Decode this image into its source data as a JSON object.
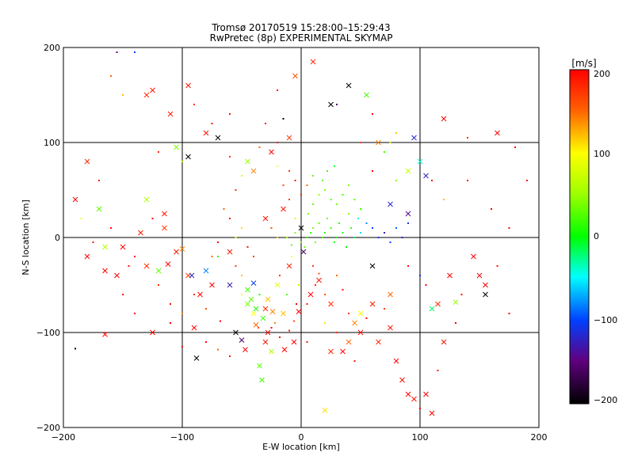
{
  "chart_data": {
    "type": "scatter",
    "title": "Tromsø 20170519 15:28:00–15:29:43",
    "subtitle": "RwPretec (8p) EXPERIMENTAL SKYMAP",
    "xlabel": "E-W location [km]",
    "ylabel": "N-S location [km]",
    "xlim": [
      -200,
      200
    ],
    "ylim": [
      -200,
      200
    ],
    "xticks": [
      "−200",
      "−100",
      "0",
      "100",
      "200"
    ],
    "yticks": [
      "−200",
      "−100",
      "0",
      "100",
      "200"
    ],
    "grid": true,
    "colorbar": {
      "label": "[m/s]",
      "range": [
        -200,
        200
      ],
      "ticks": [
        "200",
        "100",
        "0",
        "−100",
        "−200"
      ]
    },
    "markers": {
      "dot": "small points",
      "cross": "×"
    },
    "points": [
      [
        -120,
        90,
        180,
        "dot"
      ],
      [
        -110,
        130,
        190,
        "cross"
      ],
      [
        -95,
        160,
        190,
        "cross"
      ],
      [
        -90,
        140,
        170,
        "dot"
      ],
      [
        -80,
        110,
        190,
        "cross"
      ],
      [
        -75,
        120,
        190,
        "dot"
      ],
      [
        -60,
        85,
        170,
        "dot"
      ],
      [
        -55,
        50,
        180,
        "dot"
      ],
      [
        -40,
        70,
        140,
        "cross"
      ],
      [
        -30,
        120,
        190,
        "dot"
      ],
      [
        -20,
        155,
        190,
        "dot"
      ],
      [
        -5,
        170,
        160,
        "cross"
      ],
      [
        10,
        185,
        180,
        "cross"
      ],
      [
        25,
        140,
        -200,
        "cross"
      ],
      [
        40,
        160,
        -200,
        "cross"
      ],
      [
        55,
        150,
        20,
        "cross"
      ],
      [
        60,
        130,
        200,
        "dot"
      ],
      [
        80,
        110,
        120,
        "dot"
      ],
      [
        95,
        105,
        -120,
        "cross"
      ],
      [
        120,
        125,
        200,
        "cross"
      ],
      [
        140,
        105,
        180,
        "dot"
      ],
      [
        165,
        110,
        200,
        "cross"
      ],
      [
        180,
        95,
        200,
        "dot"
      ],
      [
        -190,
        40,
        200,
        "cross"
      ],
      [
        -170,
        30,
        30,
        "cross"
      ],
      [
        -160,
        10,
        200,
        "dot"
      ],
      [
        -150,
        -10,
        200,
        "cross"
      ],
      [
        -140,
        -20,
        200,
        "dot"
      ],
      [
        -130,
        -30,
        180,
        "cross"
      ],
      [
        -120,
        -50,
        180,
        "dot"
      ],
      [
        -110,
        -70,
        190,
        "dot"
      ],
      [
        -100,
        -80,
        140,
        "dot"
      ],
      [
        -90,
        -95,
        200,
        "cross"
      ],
      [
        -130,
        40,
        60,
        "cross"
      ],
      [
        -115,
        10,
        170,
        "cross"
      ],
      [
        -105,
        -15,
        190,
        "cross"
      ],
      [
        -95,
        -40,
        170,
        "cross"
      ],
      [
        -85,
        -60,
        200,
        "cross"
      ],
      [
        -75,
        -20,
        150,
        "dot"
      ],
      [
        -180,
        -20,
        200,
        "cross"
      ],
      [
        -165,
        -35,
        200,
        "cross"
      ],
      [
        -150,
        -60,
        200,
        "dot"
      ],
      [
        -140,
        -80,
        200,
        "dot"
      ],
      [
        -125,
        -100,
        200,
        "cross"
      ],
      [
        -165,
        -102,
        200,
        "cross"
      ],
      [
        -190,
        -117,
        -200,
        "dot"
      ],
      [
        -88,
        -127,
        -200,
        "cross"
      ],
      [
        -70,
        -20,
        10,
        "dot"
      ],
      [
        -60,
        -50,
        -130,
        "cross"
      ],
      [
        -50,
        -40,
        120,
        "dot"
      ],
      [
        -45,
        -70,
        40,
        "cross"
      ],
      [
        -40,
        -80,
        100,
        "cross"
      ],
      [
        -38,
        -92,
        150,
        "cross"
      ],
      [
        -35,
        -60,
        10,
        "dot"
      ],
      [
        -30,
        -75,
        180,
        "cross"
      ],
      [
        -28,
        -100,
        200,
        "cross"
      ],
      [
        -25,
        -120,
        60,
        "cross"
      ],
      [
        -22,
        -90,
        140,
        "dot"
      ],
      [
        -20,
        -50,
        90,
        "cross"
      ],
      [
        -18,
        -40,
        170,
        "dot"
      ],
      [
        -15,
        -80,
        120,
        "cross"
      ],
      [
        -12,
        -60,
        30,
        "dot"
      ],
      [
        -10,
        -30,
        180,
        "cross"
      ],
      [
        -8,
        -20,
        100,
        "dot"
      ],
      [
        -6,
        -110,
        200,
        "cross"
      ],
      [
        -4,
        -70,
        200,
        "dot"
      ],
      [
        -2,
        -50,
        60,
        "dot"
      ],
      [
        -55,
        -100,
        -200,
        "cross"
      ],
      [
        -50,
        -108,
        -160,
        "cross"
      ],
      [
        -47,
        -118,
        200,
        "cross"
      ],
      [
        -35,
        -135,
        30,
        "cross"
      ],
      [
        -33,
        -150,
        20,
        "cross"
      ],
      [
        -40,
        -20,
        170,
        "dot"
      ],
      [
        -45,
        -10,
        190,
        "dot"
      ],
      [
        -50,
        10,
        110,
        "dot"
      ],
      [
        -60,
        20,
        190,
        "dot"
      ],
      [
        -65,
        30,
        150,
        "dot"
      ],
      [
        -55,
        0,
        90,
        "dot"
      ],
      [
        -30,
        20,
        190,
        "cross"
      ],
      [
        -25,
        10,
        160,
        "dot"
      ],
      [
        -20,
        0,
        120,
        "dot"
      ],
      [
        -15,
        30,
        190,
        "cross"
      ],
      [
        -10,
        40,
        170,
        "dot"
      ],
      [
        -5,
        20,
        80,
        "dot"
      ],
      [
        0,
        10,
        -200,
        "cross"
      ],
      [
        2,
        -15,
        -160,
        "cross"
      ],
      [
        5,
        0,
        20,
        "dot"
      ],
      [
        8,
        5,
        20,
        "dot"
      ],
      [
        10,
        10,
        40,
        "dot"
      ],
      [
        12,
        -5,
        40,
        "dot"
      ],
      [
        15,
        15,
        30,
        "dot"
      ],
      [
        18,
        0,
        30,
        "dot"
      ],
      [
        20,
        5,
        10,
        "dot"
      ],
      [
        22,
        20,
        40,
        "dot"
      ],
      [
        25,
        10,
        20,
        "dot"
      ],
      [
        28,
        -5,
        10,
        "dot"
      ],
      [
        30,
        0,
        0,
        "dot"
      ],
      [
        32,
        15,
        10,
        "dot"
      ],
      [
        35,
        5,
        10,
        "dot"
      ],
      [
        38,
        -10,
        0,
        "dot"
      ],
      [
        40,
        25,
        40,
        "dot"
      ],
      [
        42,
        10,
        20,
        "dot"
      ],
      [
        45,
        0,
        -20,
        "dot"
      ],
      [
        48,
        20,
        -40,
        "dot"
      ],
      [
        50,
        5,
        -60,
        "dot"
      ],
      [
        55,
        15,
        -80,
        "dot"
      ],
      [
        60,
        10,
        -100,
        "dot"
      ],
      [
        65,
        0,
        -110,
        "dot"
      ],
      [
        70,
        5,
        -120,
        "dot"
      ],
      [
        75,
        -5,
        -100,
        "dot"
      ],
      [
        80,
        10,
        -90,
        "dot"
      ],
      [
        85,
        0,
        -120,
        "dot"
      ],
      [
        90,
        15,
        -110,
        "dot"
      ],
      [
        -5,
        5,
        40,
        "dot"
      ],
      [
        -8,
        -8,
        30,
        "dot"
      ],
      [
        -12,
        0,
        50,
        "dot"
      ],
      [
        0,
        -5,
        40,
        "dot"
      ],
      [
        3,
        -10,
        30,
        "dot"
      ],
      [
        6,
        25,
        40,
        "dot"
      ],
      [
        10,
        35,
        30,
        "dot"
      ],
      [
        15,
        45,
        50,
        "dot"
      ],
      [
        20,
        50,
        40,
        "dot"
      ],
      [
        25,
        40,
        30,
        "dot"
      ],
      [
        30,
        35,
        40,
        "dot"
      ],
      [
        35,
        45,
        20,
        "dot"
      ],
      [
        40,
        55,
        40,
        "dot"
      ],
      [
        45,
        40,
        30,
        "dot"
      ],
      [
        50,
        30,
        20,
        "dot"
      ],
      [
        18,
        60,
        30,
        "dot"
      ],
      [
        22,
        70,
        20,
        "dot"
      ],
      [
        28,
        75,
        -10,
        "dot"
      ],
      [
        10,
        65,
        30,
        "dot"
      ],
      [
        5,
        55,
        150,
        "dot"
      ],
      [
        0,
        45,
        180,
        "dot"
      ],
      [
        -5,
        60,
        190,
        "dot"
      ],
      [
        -10,
        70,
        170,
        "dot"
      ],
      [
        -15,
        55,
        160,
        "dot"
      ],
      [
        -20,
        75,
        100,
        "dot"
      ],
      [
        10,
        -30,
        170,
        "dot"
      ],
      [
        15,
        -45,
        190,
        "cross"
      ],
      [
        20,
        -60,
        160,
        "dot"
      ],
      [
        25,
        -70,
        180,
        "cross"
      ],
      [
        30,
        -40,
        150,
        "dot"
      ],
      [
        35,
        -55,
        190,
        "dot"
      ],
      [
        40,
        -80,
        170,
        "dot"
      ],
      [
        45,
        -90,
        140,
        "cross"
      ],
      [
        50,
        -100,
        190,
        "cross"
      ],
      [
        55,
        -85,
        200,
        "dot"
      ],
      [
        60,
        -70,
        190,
        "cross"
      ],
      [
        65,
        -110,
        180,
        "cross"
      ],
      [
        70,
        -75,
        170,
        "dot"
      ],
      [
        75,
        -95,
        190,
        "cross"
      ],
      [
        80,
        -130,
        200,
        "cross"
      ],
      [
        85,
        -150,
        190,
        "cross"
      ],
      [
        90,
        -165,
        200,
        "cross"
      ],
      [
        95,
        -170,
        190,
        "cross"
      ],
      [
        100,
        -180,
        200,
        "dot"
      ],
      [
        105,
        -165,
        200,
        "cross"
      ],
      [
        110,
        -185,
        200,
        "cross"
      ],
      [
        115,
        -140,
        190,
        "dot"
      ],
      [
        40,
        -110,
        150,
        "cross"
      ],
      [
        20,
        -90,
        110,
        "dot"
      ],
      [
        20,
        -182,
        110,
        "cross"
      ],
      [
        50,
        -80,
        100,
        "cross"
      ],
      [
        60,
        -30,
        -200,
        "cross"
      ],
      [
        75,
        -60,
        150,
        "cross"
      ],
      [
        90,
        -30,
        190,
        "dot"
      ],
      [
        105,
        -50,
        200,
        "dot"
      ],
      [
        115,
        -70,
        180,
        "cross"
      ],
      [
        125,
        -40,
        200,
        "cross"
      ],
      [
        135,
        -60,
        190,
        "dot"
      ],
      [
        145,
        -20,
        200,
        "cross"
      ],
      [
        155,
        -50,
        200,
        "cross"
      ],
      [
        165,
        -30,
        190,
        "dot"
      ],
      [
        175,
        -80,
        200,
        "dot"
      ],
      [
        150,
        -40,
        200,
        "cross"
      ],
      [
        130,
        -90,
        200,
        "dot"
      ],
      [
        120,
        -110,
        190,
        "cross"
      ],
      [
        155,
        -60,
        -200,
        "cross"
      ],
      [
        130,
        -68,
        50,
        "cross"
      ],
      [
        110,
        -75,
        -20,
        "cross"
      ],
      [
        100,
        -40,
        -110,
        "dot"
      ],
      [
        120,
        40,
        120,
        "dot"
      ],
      [
        140,
        60,
        200,
        "dot"
      ],
      [
        160,
        30,
        200,
        "dot"
      ],
      [
        175,
        10,
        200,
        "dot"
      ],
      [
        190,
        60,
        200,
        "dot"
      ],
      [
        110,
        60,
        200,
        "dot"
      ],
      [
        100,
        80,
        -40,
        "cross"
      ],
      [
        90,
        70,
        70,
        "cross"
      ],
      [
        80,
        60,
        40,
        "dot"
      ],
      [
        70,
        90,
        20,
        "dot"
      ],
      [
        60,
        70,
        200,
        "dot"
      ],
      [
        105,
        65,
        -120,
        "cross"
      ],
      [
        75,
        35,
        -120,
        "cross"
      ],
      [
        90,
        25,
        -140,
        "cross"
      ],
      [
        -150,
        150,
        120,
        "dot"
      ],
      [
        -160,
        170,
        150,
        "dot"
      ],
      [
        -140,
        195,
        -100,
        "dot"
      ],
      [
        -155,
        195,
        -150,
        "dot"
      ],
      [
        -130,
        150,
        180,
        "cross"
      ],
      [
        -125,
        155,
        190,
        "cross"
      ],
      [
        -180,
        80,
        180,
        "cross"
      ],
      [
        -170,
        60,
        190,
        "dot"
      ],
      [
        -185,
        20,
        100,
        "dot"
      ],
      [
        -175,
        -5,
        190,
        "dot"
      ],
      [
        -165,
        -10,
        60,
        "cross"
      ],
      [
        -45,
        80,
        50,
        "cross"
      ],
      [
        -50,
        65,
        80,
        "dot"
      ],
      [
        -25,
        90,
        200,
        "cross"
      ],
      [
        -20,
        100,
        190,
        "dot"
      ],
      [
        -10,
        105,
        170,
        "cross"
      ],
      [
        -35,
        95,
        150,
        "dot"
      ],
      [
        -15,
        125,
        -200,
        "dot"
      ],
      [
        30,
        140,
        -160,
        "dot"
      ],
      [
        50,
        100,
        170,
        "dot"
      ],
      [
        65,
        100,
        140,
        "cross"
      ],
      [
        75,
        100,
        80,
        "dot"
      ],
      [
        -60,
        130,
        190,
        "dot"
      ],
      [
        -70,
        105,
        -200,
        "cross"
      ],
      [
        -95,
        85,
        -200,
        "cross"
      ],
      [
        -100,
        80,
        60,
        "dot"
      ],
      [
        -105,
        95,
        40,
        "cross"
      ],
      [
        -115,
        25,
        190,
        "cross"
      ],
      [
        -125,
        20,
        200,
        "dot"
      ],
      [
        -135,
        5,
        190,
        "cross"
      ],
      [
        -145,
        -30,
        190,
        "dot"
      ],
      [
        -155,
        -40,
        200,
        "cross"
      ],
      [
        -120,
        -35,
        30,
        "cross"
      ],
      [
        -112,
        -28,
        200,
        "cross"
      ],
      [
        -100,
        -12,
        140,
        "cross"
      ],
      [
        -92,
        -40,
        -120,
        "cross"
      ],
      [
        -80,
        -35,
        -80,
        "cross"
      ],
      [
        -70,
        -5,
        200,
        "dot"
      ],
      [
        -60,
        -15,
        190,
        "cross"
      ],
      [
        -55,
        -30,
        170,
        "dot"
      ],
      [
        -75,
        -50,
        200,
        "cross"
      ],
      [
        -68,
        -88,
        200,
        "dot"
      ],
      [
        -80,
        -75,
        160,
        "dot"
      ],
      [
        -90,
        -60,
        180,
        "dot"
      ],
      [
        -110,
        -90,
        200,
        "dot"
      ],
      [
        -100,
        -115,
        190,
        "dot"
      ],
      [
        -80,
        -110,
        200,
        "dot"
      ],
      [
        -70,
        -118,
        150,
        "dot"
      ],
      [
        -60,
        -125,
        190,
        "dot"
      ],
      [
        -50,
        -60,
        100,
        "dot"
      ],
      [
        -45,
        -55,
        20,
        "cross"
      ],
      [
        -40,
        -48,
        -100,
        "cross"
      ],
      [
        -42,
        -65,
        30,
        "cross"
      ],
      [
        -38,
        -75,
        10,
        "cross"
      ],
      [
        -32,
        -85,
        20,
        "cross"
      ],
      [
        -28,
        -65,
        120,
        "cross"
      ],
      [
        -24,
        -78,
        140,
        "cross"
      ],
      [
        -36,
        -95,
        160,
        "dot"
      ],
      [
        -30,
        -110,
        190,
        "cross"
      ],
      [
        -25,
        -95,
        200,
        "dot"
      ],
      [
        -18,
        -105,
        200,
        "dot"
      ],
      [
        -14,
        -118,
        200,
        "cross"
      ],
      [
        -10,
        -98,
        190,
        "dot"
      ],
      [
        -6,
        -88,
        160,
        "dot"
      ],
      [
        -2,
        -78,
        200,
        "cross"
      ],
      [
        5,
        -70,
        190,
        "dot"
      ],
      [
        8,
        -60,
        200,
        "cross"
      ],
      [
        12,
        -50,
        180,
        "dot"
      ],
      [
        15,
        -38,
        160,
        "dot"
      ],
      [
        5,
        -110,
        190,
        "dot"
      ],
      [
        30,
        -100,
        180,
        "dot"
      ],
      [
        35,
        -120,
        200,
        "cross"
      ],
      [
        45,
        -130,
        190,
        "dot"
      ],
      [
        25,
        -120,
        180,
        "cross"
      ]
    ]
  }
}
